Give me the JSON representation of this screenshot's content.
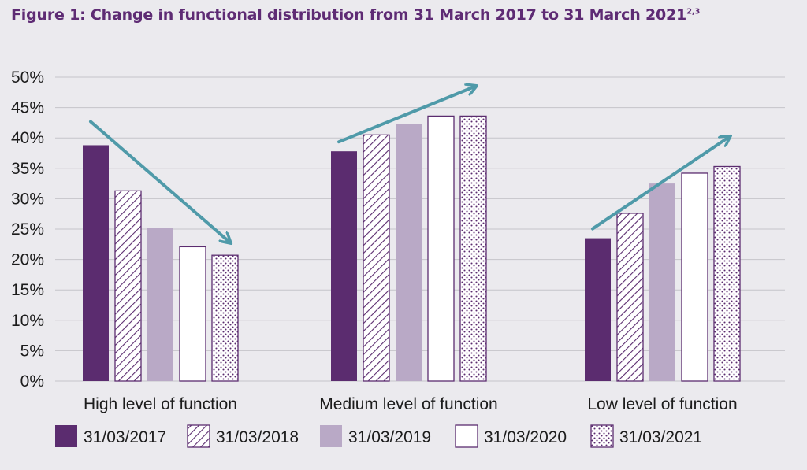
{
  "title": "Figure 1: Change in functional distribution from 31 March 2017 to 31 March 2021",
  "title_sup": "2,3",
  "colors": {
    "purple": "#5b2c6f",
    "lilac": "#b9a9c6",
    "white": "#ffffff",
    "arrow": "#4f9aa9",
    "grid": "#c5c4ca"
  },
  "chart_data": {
    "type": "bar",
    "title": "Figure 1: Change in functional distribution from 31 March 2017 to 31 March 2021",
    "xlabel": "",
    "ylabel": "",
    "ylim": [
      0,
      50
    ],
    "yticks": [
      "0%",
      "5%",
      "10%",
      "15%",
      "20%",
      "25%",
      "30%",
      "35%",
      "40%",
      "45%",
      "50%"
    ],
    "grid": true,
    "legend": "bottom",
    "categories": [
      "High level of function",
      "Medium level of function",
      "Low level of function"
    ],
    "series": [
      {
        "name": "31/03/2017",
        "style": "solid-purple",
        "values": [
          38.8,
          37.8,
          23.5
        ]
      },
      {
        "name": "31/03/2018",
        "style": "diagonal-hatch",
        "values": [
          31.3,
          40.5,
          27.6
        ]
      },
      {
        "name": "31/03/2019",
        "style": "solid-lilac",
        "values": [
          25.2,
          42.3,
          32.5
        ]
      },
      {
        "name": "31/03/2020",
        "style": "white",
        "values": [
          22.1,
          43.6,
          34.2
        ]
      },
      {
        "name": "31/03/2021",
        "style": "dotted",
        "values": [
          20.7,
          43.6,
          35.3
        ]
      }
    ],
    "annotations": [
      {
        "type": "trend-arrow",
        "category": "High level of function",
        "direction": "down"
      },
      {
        "type": "trend-arrow",
        "category": "Medium level of function",
        "direction": "up"
      },
      {
        "type": "trend-arrow",
        "category": "Low level of function",
        "direction": "up"
      }
    ]
  }
}
